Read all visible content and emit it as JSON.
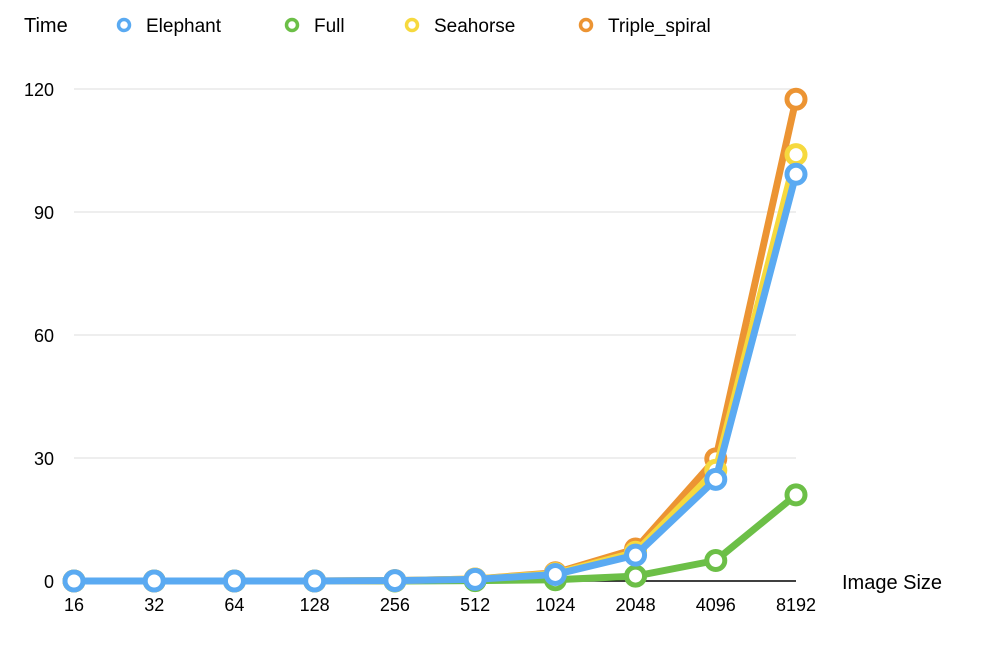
{
  "chart_data": {
    "type": "line",
    "title": "",
    "ylabel": "Time",
    "xlabel": "Image Size",
    "categories": [
      "16",
      "32",
      "64",
      "128",
      "256",
      "512",
      "1024",
      "2048",
      "4096",
      "8192"
    ],
    "ylim": [
      0,
      120
    ],
    "yticks": [
      0,
      30,
      60,
      90,
      120
    ],
    "grid": true,
    "legend_position": "top",
    "series": [
      {
        "name": "Elephant",
        "color": "#5aaaf2",
        "values": [
          0,
          0,
          0,
          0,
          0.1,
          0.4,
          1.6,
          6.3,
          24.8,
          99.2
        ]
      },
      {
        "name": "Full",
        "color": "#6cbf47",
        "values": [
          0,
          0,
          0,
          0,
          0,
          0.1,
          0.3,
          1.2,
          5.0,
          21.0
        ]
      },
      {
        "name": "Seahorse",
        "color": "#f6d93e",
        "values": [
          0,
          0,
          0,
          0,
          0.1,
          0.5,
          1.8,
          7.0,
          27.0,
          104.0
        ]
      },
      {
        "name": "Triple_spiral",
        "color": "#ec9433",
        "values": [
          0,
          0,
          0,
          0,
          0.1,
          0.5,
          2.0,
          7.8,
          29.8,
          117.5
        ]
      }
    ]
  }
}
